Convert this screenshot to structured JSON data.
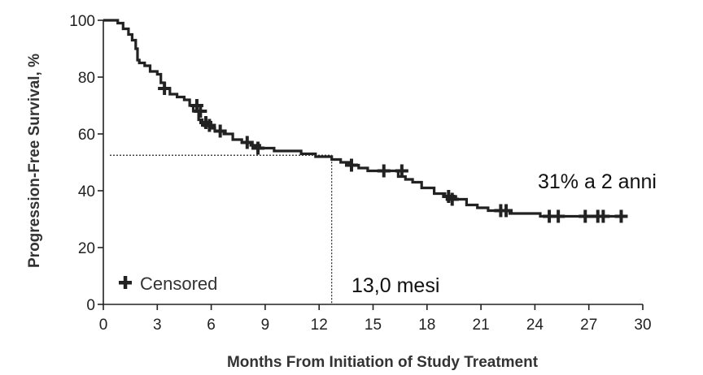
{
  "chart_data": {
    "type": "line",
    "xlabel": "Months From Initiation of Study Treatment",
    "ylabel": "Progression-Free Survival, %",
    "xlim": [
      0,
      30
    ],
    "ylim": [
      0,
      100
    ],
    "x_ticks": [
      "0",
      "3",
      "6",
      "9",
      "12",
      "15",
      "18",
      "21",
      "24",
      "27",
      "30"
    ],
    "y_ticks": [
      "0",
      "20",
      "40",
      "60",
      "80",
      "100"
    ],
    "grid": false,
    "legend": {
      "label": "Censored",
      "position": "bottom-left"
    },
    "series": [
      {
        "x": [
          0,
          0.8,
          1.1,
          1.4,
          1.6,
          1.8,
          1.9,
          2.0,
          2.3,
          2.6,
          3.0,
          3.2,
          3.4,
          3.7,
          4.1,
          4.5,
          4.8,
          5.0,
          5.3,
          5.5,
          5.9,
          6.2,
          6.7,
          7.2,
          7.7,
          8.2,
          8.7,
          9.5,
          10.5,
          11.0,
          11.8,
          12.4,
          12.7,
          13.2,
          13.7,
          14.2,
          14.7,
          15.5,
          16.4,
          16.8,
          17.2,
          17.7,
          18.4,
          19.0,
          19.6,
          20.2,
          20.8,
          21.4,
          22.3,
          22.6,
          24.0,
          24.3,
          29.0
        ],
        "y": [
          100,
          99,
          97,
          95,
          93,
          90,
          86,
          85,
          84,
          82,
          81,
          78,
          76,
          74,
          73,
          72,
          70,
          68,
          65,
          63,
          62,
          61,
          60,
          58,
          57,
          56,
          55,
          54,
          54,
          53,
          52,
          52,
          51,
          50,
          49,
          48,
          47,
          47,
          45,
          44,
          43,
          41,
          39,
          38,
          37,
          35,
          34,
          33,
          33,
          32,
          32,
          31,
          31
        ]
      }
    ],
    "censored": {
      "x": [
        3.4,
        5.2,
        5.4,
        5.7,
        5.9,
        6.5,
        8.0,
        8.6,
        13.8,
        15.6,
        16.6,
        19.2,
        19.4,
        22.1,
        22.4,
        24.8,
        25.3,
        26.8,
        27.5,
        27.8,
        28.8
      ],
      "y": [
        76,
        70,
        68,
        64,
        63,
        61,
        57,
        55,
        49,
        47,
        47,
        38,
        37,
        33,
        33,
        31,
        31,
        31,
        31,
        31,
        31
      ]
    },
    "reference": {
      "x": 12.7,
      "y": 52.5
    },
    "annotations": {
      "median_label": "13,0 mesi",
      "two_year_label": "31% a 2 anni"
    }
  }
}
